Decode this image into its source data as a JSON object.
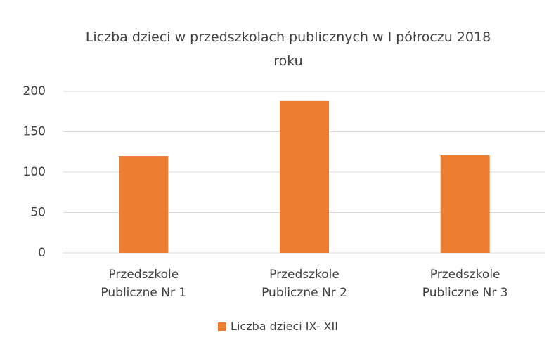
{
  "chart_data": {
    "type": "bar",
    "title": "Liczba dzieci w przedszkolach publicznych w I półroczu 2018 roku",
    "categories": [
      "Przedszkole Publiczne Nr 1",
      "Przedszkole Publiczne Nr 2",
      "Przedszkole Publiczne Nr 3"
    ],
    "series": [
      {
        "name": "Liczba dzieci IX- XII",
        "color": "#ed7d31",
        "values": [
          120,
          188,
          121
        ]
      }
    ],
    "ylim": [
      0,
      200
    ],
    "yticks": [
      0,
      50,
      100,
      150,
      200
    ],
    "grid": true,
    "legend": "bottom"
  }
}
